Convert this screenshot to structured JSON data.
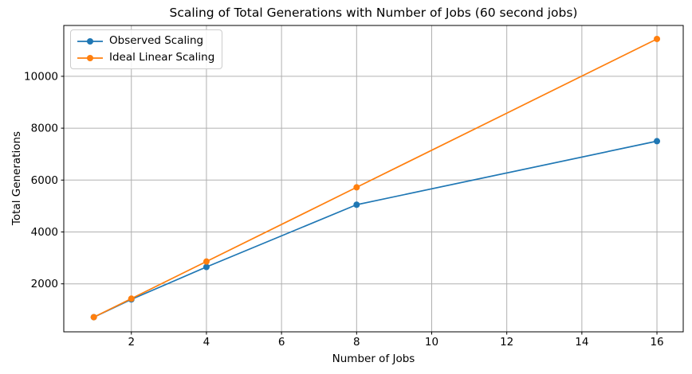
{
  "chart_data": {
    "type": "line",
    "title": "Scaling of Total Generations with Number of Jobs (60 second jobs)",
    "xlabel": "Number of Jobs",
    "ylabel": "Total Generations",
    "x": [
      1,
      2,
      4,
      8,
      16
    ],
    "series": [
      {
        "name": "Observed Scaling",
        "color": "#1f77b4",
        "values": [
          715,
          1400,
          2650,
          5050,
          7500
        ]
      },
      {
        "name": "Ideal Linear Scaling",
        "color": "#ff7f0e",
        "values": [
          715,
          1430,
          2860,
          5720,
          11440
        ]
      }
    ],
    "xticks": [
      2,
      4,
      6,
      8,
      10,
      12,
      14,
      16
    ],
    "yticks": [
      2000,
      4000,
      6000,
      8000,
      10000
    ],
    "xlim": [
      0.2,
      16.7
    ],
    "ylim": [
      150,
      11960
    ],
    "grid": true,
    "grid_color": "#b0b0b0",
    "spine_color": "#000000",
    "tick_label_color": "#000000",
    "background": "#ffffff",
    "legend": {
      "position": "upper left",
      "labels": [
        "Observed Scaling",
        "Ideal Linear Scaling"
      ]
    }
  }
}
